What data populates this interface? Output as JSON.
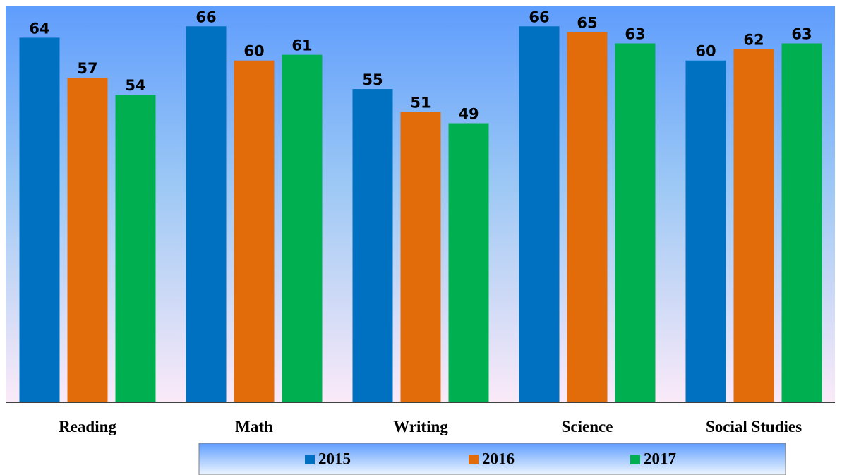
{
  "chart_data": {
    "type": "bar",
    "categories": [
      "Reading",
      "Math",
      "Writing",
      "Science",
      "Social Studies"
    ],
    "series": [
      {
        "name": "2015",
        "color": "#0070c0",
        "values": [
          64,
          66,
          55,
          66,
          60
        ]
      },
      {
        "name": "2016",
        "color": "#e36c0a",
        "values": [
          57,
          60,
          51,
          65,
          62
        ]
      },
      {
        "name": "2017",
        "color": "#00b050",
        "values": [
          54,
          61,
          49,
          63,
          63
        ]
      }
    ],
    "ylim": [
      0,
      70
    ],
    "legend": "bottom"
  }
}
